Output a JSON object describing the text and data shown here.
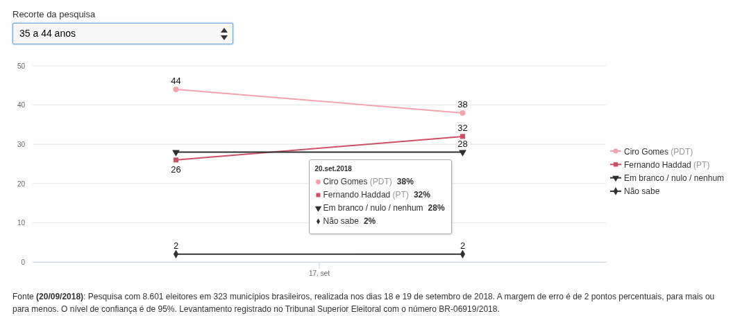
{
  "chart_data": {
    "type": "line",
    "categories": [
      null,
      null
    ],
    "ylim": [
      0,
      50
    ],
    "yticks": [
      0,
      10,
      20,
      30,
      40,
      50
    ],
    "grid": "y",
    "legend": "right",
    "line_style": "solid",
    "series": [
      {
        "name": "Ciro Gomes (PDT)",
        "color": "#f4a3ad",
        "values": [
          44,
          38
        ],
        "marker": "circle",
        "value_labels": [
          "44",
          "38"
        ]
      },
      {
        "name": "Fernando Haddad (PT)",
        "color": "#cc5166",
        "values": [
          26,
          32
        ],
        "marker": "square",
        "value_labels": [
          "26",
          "32"
        ]
      },
      {
        "name": "Em branco / nulo / nenhum",
        "color": "#2e2e2e",
        "values": [
          28,
          28
        ],
        "marker": "triangle",
        "value_labels": [
          null,
          "28"
        ]
      },
      {
        "name": "Não sabe",
        "color": "#333333",
        "values": [
          2,
          2
        ],
        "marker": "diamond",
        "value_labels": [
          "2",
          "2"
        ]
      }
    ],
    "annotations": [
      "Recorte da pesquisa",
      "35 a 44 anos",
      "17. set",
      "20.set.2018",
      "Ciro Gomes (PDT) 38%",
      "Fernando Haddad (PT) 32%",
      "Em branco / nulo / nenhum 28%",
      "Não sabe 2%",
      "Fonte (20/09/2018): Pesquisa com 8.601 eleitores em 323 municípios brasileiros, realizada nos dias 18 e 19 de setembro de 2018. A margem de erro é de 2 pontos percentuais, para mais ou para menos. O nível de confiança é de 95%. Levantamento registrado no Tribunal Superior Eleitoral com o número BR-06919/2018."
    ]
  }
}
